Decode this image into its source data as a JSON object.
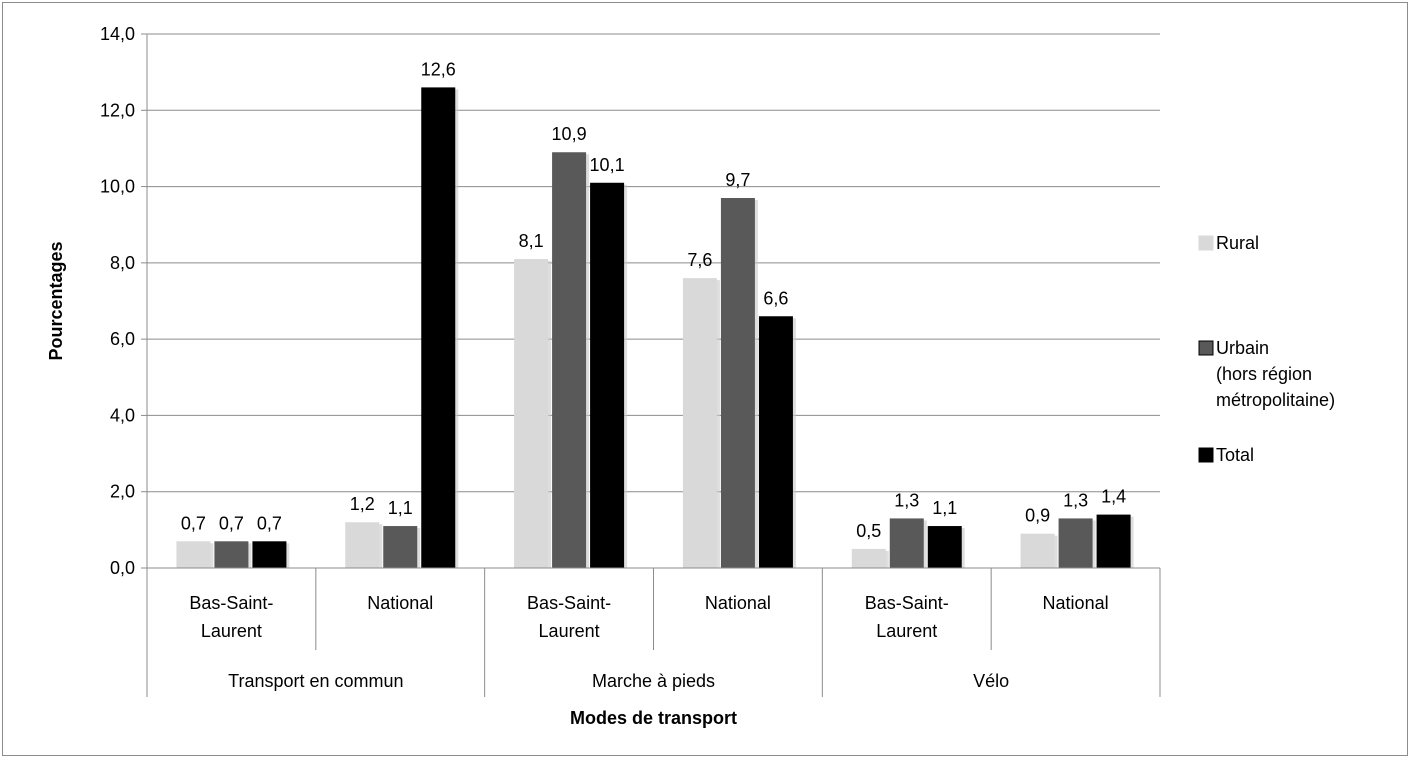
{
  "chart_data": {
    "type": "bar",
    "title": "",
    "xlabel": "Modes de transport",
    "ylabel": "Pourcentages",
    "ylim": [
      0,
      14
    ],
    "ytick_step": 2,
    "ytick_labels": [
      "0,0",
      "2,0",
      "4,0",
      "6,0",
      "8,0",
      "10,0",
      "12,0",
      "14,0"
    ],
    "grid": true,
    "legend_position": "right",
    "groups": [
      {
        "label": "Transport en commun",
        "subcategories": [
          "Bas-Saint-Laurent",
          "National"
        ]
      },
      {
        "label": "Marche à pieds",
        "subcategories": [
          "Bas-Saint-Laurent",
          "National"
        ]
      },
      {
        "label": "Vélo",
        "subcategories": [
          "Bas-Saint-Laurent",
          "National"
        ]
      }
    ],
    "categories": [
      "Transport en commun / Bas-Saint-Laurent",
      "Transport en commun / National",
      "Marche à pieds / Bas-Saint-Laurent",
      "Marche à pieds / National",
      "Vélo / Bas-Saint-Laurent",
      "Vélo / National"
    ],
    "category_label_lines": [
      [
        "Bas-Saint-",
        "Laurent"
      ],
      [
        "National"
      ],
      [
        "Bas-Saint-",
        "Laurent"
      ],
      [
        "National"
      ],
      [
        "Bas-Saint-",
        "Laurent"
      ],
      [
        "National"
      ]
    ],
    "series": [
      {
        "name": "Rural",
        "legend_lines": [
          "Rural"
        ],
        "color": "#d9d9d9",
        "values": [
          0.7,
          1.2,
          8.1,
          7.6,
          0.5,
          0.9
        ],
        "labels": [
          "0,7",
          "1,2",
          "8,1",
          "7,6",
          "0,5",
          "0,9"
        ]
      },
      {
        "name": "Urbain (hors région métropolitaine)",
        "legend_lines": [
          "Urbain",
          "(hors région",
          "métropolitaine)"
        ],
        "color": "#595959",
        "values": [
          0.7,
          1.1,
          10.9,
          9.7,
          1.3,
          1.3
        ],
        "labels": [
          "0,7",
          "1,1",
          "10,9",
          "9,7",
          "1,3",
          "1,3"
        ]
      },
      {
        "name": "Total",
        "legend_lines": [
          "Total"
        ],
        "color": "#000000",
        "values": [
          0.7,
          12.6,
          10.1,
          6.6,
          1.1,
          1.4
        ],
        "labels": [
          "0,7",
          "12,6",
          "10,1",
          "6,6",
          "1,1",
          "1,4"
        ]
      }
    ]
  }
}
